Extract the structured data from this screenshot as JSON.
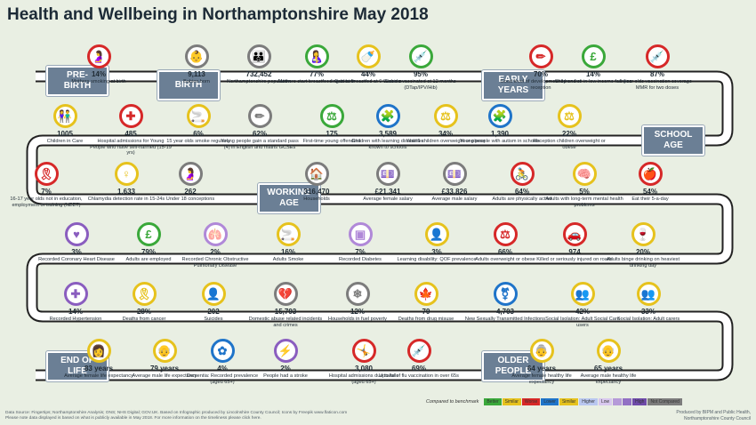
{
  "title": "Health and Wellbeing in Northamptonshire May 2018",
  "phases": {
    "prebirth": "PRE-\nBIRTH",
    "birth": "BIRTH",
    "early": "EARLY\nYEARS",
    "school": "SCHOOL\nAGE",
    "working": "WORKING\nAGE",
    "end": "END OF\nLIFE",
    "older": "OLDER\nPEOPLE"
  },
  "colors": {
    "green": "#3aa83a",
    "yellow": "#e6c21d",
    "red": "#d62828",
    "grey": "#7c7c7c",
    "purple": "#8a5dbf",
    "blue": "#1f74c9",
    "lilac": "#b088d8",
    "road": "#ffffff"
  },
  "rows": [
    [
      {
        "icon": "pregnant-woman-icon",
        "glyph": "🤰",
        "color": "red",
        "value": "14%",
        "label": "Mothers smoking at birth"
      },
      {
        "icon": "baby-icon",
        "glyph": "👶",
        "color": "grey",
        "value": "9,113",
        "label": "Babies born"
      },
      {
        "icon": "population-icon",
        "glyph": "👪",
        "color": "grey",
        "value": "732,452",
        "label": "Northamptonshire population"
      },
      {
        "icon": "breastfeeding-icon",
        "glyph": "🤱",
        "color": "green",
        "value": "77%",
        "label": "Mothers start breastfeeding at birth"
      },
      {
        "icon": "breastfeeding-icon",
        "glyph": "🍼",
        "color": "yellow",
        "value": "44%",
        "label": "Babies breastfed at 6-8 weeks"
      },
      {
        "icon": "syringe-icon",
        "glyph": "💉",
        "color": "green",
        "value": "95%",
        "label": "Babies vaccinated at 12 months (DTap/IPV/Hib)"
      },
      {
        "icon": "pencil-ruler-icon",
        "glyph": "✏",
        "color": "red",
        "value": "70%",
        "label": "Good level of development by end of reception"
      },
      {
        "icon": "pound-icon",
        "glyph": "£",
        "color": "green",
        "value": "14%",
        "label": "Children live in low income families"
      },
      {
        "icon": "syringe-icon",
        "glyph": "💉",
        "color": "red",
        "value": "87%",
        "label": "5 year olds vaccination coverage - MMR for two doses"
      }
    ],
    [
      {
        "icon": "children-icon",
        "glyph": "👫",
        "color": "yellow",
        "value": "1005",
        "label": "Children in Care"
      },
      {
        "icon": "self-harm-icon",
        "glyph": "✚",
        "color": "red",
        "value": "485",
        "label": "Hospital admissions for Young People who have self-harmed (15-19 yrs)"
      },
      {
        "icon": "cigarette-icon",
        "glyph": "🚬",
        "color": "yellow",
        "value": "6%",
        "label": "15 year olds smoke regularly"
      },
      {
        "icon": "pencil-ruler-icon",
        "glyph": "✏",
        "color": "grey",
        "value": "62%",
        "label": "Young people gain a standard pass (4) in English and maths GCSEs"
      },
      {
        "icon": "gavel-icon",
        "glyph": "⚖",
        "color": "green",
        "value": "175",
        "label": "First-time young offenders"
      },
      {
        "icon": "puzzle-icon",
        "glyph": "🧩",
        "color": "blue",
        "value": "3,589",
        "label": "Children with learning disabilities known to schools"
      },
      {
        "icon": "scale-icon",
        "glyph": "⚖",
        "color": "yellow",
        "value": "34%",
        "label": "Year 6 children overweight or obese"
      },
      {
        "icon": "puzzle-icon",
        "glyph": "🧩",
        "color": "blue",
        "value": "1,390",
        "label": "Young people with autism in schools"
      },
      {
        "icon": "scale-icon",
        "glyph": "⚖",
        "color": "yellow",
        "value": "22%",
        "label": "Reception children overweight or obese"
      }
    ],
    [
      {
        "icon": "ribbon-icon",
        "glyph": "🎗",
        "color": "red",
        "value": "7%",
        "label": "16-17 year olds not in education, employment or training (NEET)"
      },
      {
        "icon": "chlamydia-icon",
        "glyph": "♀",
        "color": "yellow",
        "value": "1,633",
        "label": "Chlamydia detection rate in 15-24s"
      },
      {
        "icon": "pregnant-icon",
        "glyph": "🤰",
        "color": "grey",
        "value": "262",
        "label": "Under 18 conceptions"
      },
      {
        "icon": "house-icon",
        "glyph": "🏠",
        "color": "grey",
        "value": "316,470",
        "label": "Households"
      },
      {
        "icon": "money-icon",
        "glyph": "💷",
        "color": "grey",
        "value": "£21,341",
        "label": "Average female salary"
      },
      {
        "icon": "money-icon",
        "glyph": "💷",
        "color": "grey",
        "value": "£33,826",
        "label": "Average male salary"
      },
      {
        "icon": "cyclist-icon",
        "glyph": "🚴",
        "color": "red",
        "value": "64%",
        "label": "Adults are physically active"
      },
      {
        "icon": "brain-icon",
        "glyph": "🧠",
        "color": "yellow",
        "value": "5%",
        "label": "Adults with long-term mental health problems"
      },
      {
        "icon": "apple-icon",
        "glyph": "🍎",
        "color": "red",
        "value": "54%",
        "label": "Eat their 5-a-day"
      }
    ],
    [
      {
        "icon": "heart-icon",
        "glyph": "♥",
        "color": "purple",
        "value": "3%",
        "label": "Recorded Coronary Heart Disease"
      },
      {
        "icon": "pound-icon",
        "glyph": "£",
        "color": "green",
        "value": "79%",
        "label": "Adults are employed"
      },
      {
        "icon": "lungs-icon",
        "glyph": "🫁",
        "color": "lilac",
        "value": "2%",
        "label": "Recorded Chronic Obstructive Pulmonary Disease"
      },
      {
        "icon": "cigarette-icon",
        "glyph": "🚬",
        "color": "yellow",
        "value": "16%",
        "label": "Adults Smoke"
      },
      {
        "icon": "diabetes-icon",
        "glyph": "▣",
        "color": "lilac",
        "value": "7%",
        "label": "Recorded Diabetes"
      },
      {
        "icon": "learning-icon",
        "glyph": "👤",
        "color": "yellow",
        "value": "3%",
        "label": "Learning disability: QOF prevalence"
      },
      {
        "icon": "scale-icon",
        "glyph": "⚖",
        "color": "red",
        "value": "66%",
        "label": "Adults overweight or obese"
      },
      {
        "icon": "car-crash-icon",
        "glyph": "🚗",
        "color": "red",
        "value": "974",
        "label": "Killed or seriously injured on roads"
      },
      {
        "icon": "drinks-icon",
        "glyph": "🍷",
        "color": "yellow",
        "value": "20%",
        "label": "Adults binge drinking on heaviest drinking day"
      }
    ],
    [
      {
        "icon": "blood-pressure-icon",
        "glyph": "✚",
        "color": "purple",
        "value": "14%",
        "label": "Recorded Hypertension"
      },
      {
        "icon": "cancer-ribbon-icon",
        "glyph": "🎗",
        "color": "yellow",
        "value": "28%",
        "label": "Deaths from cancer"
      },
      {
        "icon": "person-icon",
        "glyph": "👤",
        "color": "yellow",
        "value": "202",
        "label": "Suicides"
      },
      {
        "icon": "broken-heart-icon",
        "glyph": "💔",
        "color": "grey",
        "value": "15,793",
        "label": "Domestic abuse related incidents and crimes"
      },
      {
        "icon": "snowflake-icon",
        "glyph": "❄",
        "color": "grey",
        "value": "12%",
        "label": "Households in fuel poverty"
      },
      {
        "icon": "cannabis-leaf-icon",
        "glyph": "🍁",
        "color": "yellow",
        "value": "79",
        "label": "Deaths from drug misuse"
      },
      {
        "icon": "sti-icon",
        "glyph": "⚧",
        "color": "blue",
        "value": "4,703",
        "label": "New Sexually Transmitted Infections"
      },
      {
        "icon": "social-care-icon",
        "glyph": "👥",
        "color": "yellow",
        "value": "42%",
        "label": "Social Isolation: Adult Social Care users"
      },
      {
        "icon": "carers-icon",
        "glyph": "👥",
        "color": "yellow",
        "value": "33%",
        "label": "Social Isolation: Adult carers"
      }
    ],
    [
      {
        "icon": "woman-icon",
        "glyph": "👩",
        "color": "yellow",
        "value": "83 years",
        "label": "Average female life expectancy"
      },
      {
        "icon": "elderly-man-icon",
        "glyph": "👴",
        "color": "yellow",
        "value": "79 years",
        "label": "Average male life expectancy"
      },
      {
        "icon": "flower-icon",
        "glyph": "✿",
        "color": "blue",
        "value": "4%",
        "label": "Dementia: Recorded prevalence (aged 65+)"
      },
      {
        "icon": "lightning-icon",
        "glyph": "⚡",
        "color": "purple",
        "value": "2%",
        "label": "People had a stroke"
      },
      {
        "icon": "fall-icon",
        "glyph": "🤸",
        "color": "red",
        "value": "3,080",
        "label": "Hospital admissions due to falls (aged 65+)"
      },
      {
        "icon": "syringe-icon",
        "glyph": "💉",
        "color": "red",
        "value": "69%",
        "label": "Uptake of flu vaccination in over 65s"
      },
      {
        "icon": "elderly-woman-icon",
        "glyph": "👵",
        "color": "yellow",
        "value": "64 years",
        "label": "Average female healthy life expectancy"
      },
      {
        "icon": "elderly-man-icon",
        "glyph": "👴",
        "color": "yellow",
        "value": "65 years",
        "label": "Average male healthy life expectancy"
      }
    ]
  ],
  "legend": {
    "title": "Compared to benchmark",
    "items": [
      {
        "text": "Better",
        "color": "#3aa83a"
      },
      {
        "text": "Similar",
        "color": "#e6c21d"
      },
      {
        "text": "Worse",
        "color": "#d62828"
      },
      {
        "text": "Lower",
        "color": "#1f74c9"
      },
      {
        "text": "Similar",
        "color": "#e6c21d"
      },
      {
        "text": "Higher",
        "color": "#b9c7f0"
      },
      {
        "text": "Low",
        "color": "#d8c8ee"
      },
      {
        "text": "",
        "color": "#b59ad8"
      },
      {
        "text": "",
        "color": "#9270c4"
      },
      {
        "text": "High",
        "color": "#6e4aa8"
      },
      {
        "text": "Not Compared",
        "color": "#7c7c7c"
      }
    ]
  },
  "footer": "Data Source: Fingertips; Northamptonshire Analysis; ONS; NHS Digital; GOV.UK. Based on Infographic produced by Lincolnshire County Council; Icons by Freepik www.flaticon.com\nPlease note data displayed is based on what is publicly available in May 2018. For more information on the timeliness please click here.",
  "credit": "Produced by BIPM and Public Health,\nNorthamptonshire County Council"
}
